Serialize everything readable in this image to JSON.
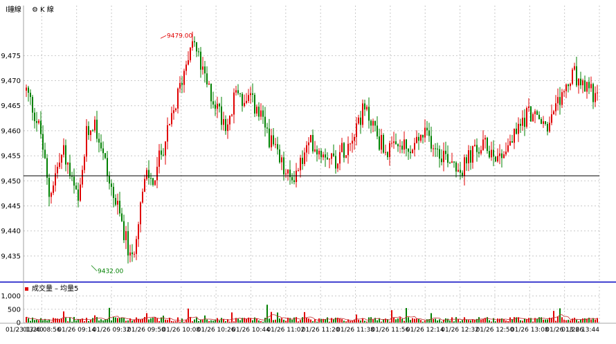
{
  "header": {
    "period_label": "l鐘線",
    "kline_label": "K 線",
    "kline_icon": "gear-icon"
  },
  "volume_panel": {
    "legend_volume": "成交量",
    "legend_separator": "–",
    "legend_ma": "均量5"
  },
  "colors": {
    "up": "#e00000",
    "down": "#008000",
    "reference_line": "#000000",
    "panel_divider": "#0000c0",
    "grid": "#c8c8c8"
  },
  "chart_data": {
    "type": "candlestick",
    "price_axis": {
      "ylim": [
        9430,
        9485
      ],
      "ticks": [
        "9,435",
        "9,440",
        "9,445",
        "9,450",
        "9,455",
        "9,460",
        "9,465",
        "9,470",
        "9,475"
      ]
    },
    "reference_level": 9451,
    "annotations": [
      {
        "label": "9479.00",
        "value": 9479,
        "kind": "high"
      },
      {
        "label": "9432.00",
        "value": 9432,
        "kind": "low"
      }
    ],
    "volume_axis": {
      "ylim": [
        0,
        1250
      ],
      "ticks": [
        "1,000",
        "500",
        "0"
      ]
    },
    "x_tick_labels": [
      "01/23 13:40",
      "01/26 08:56",
      "01/26 09:14",
      "01/26 09:32",
      "01/26 09:50",
      "01/26 10:08",
      "01/26 10:26",
      "01/26 10:44",
      "01/26 11:02",
      "01/26 11:20",
      "01/26 11:38",
      "01/26 11:56",
      "01/26 12:14",
      "01/26 12:32",
      "01/26 12:50",
      "01/26 13:08",
      "01/26 13:26",
      "01/26 13:44"
    ],
    "close_path": [
      9468,
      9464,
      9459,
      9447,
      9452,
      9456,
      9450,
      9445,
      9459,
      9462,
      9457,
      9450,
      9445,
      9440,
      9433,
      9444,
      9451,
      9450,
      9456,
      9460,
      9466,
      9472,
      9479,
      9474,
      9469,
      9466,
      9463,
      9461,
      9469,
      9465,
      9466,
      9463,
      9460,
      9456,
      9453,
      9450,
      9452,
      9455,
      9458,
      9456,
      9456,
      9454,
      9456,
      9458,
      9462,
      9464,
      9462,
      9458,
      9456,
      9456,
      9457,
      9455,
      9458,
      9459,
      9458,
      9456,
      9455,
      9454,
      9452,
      9455,
      9456,
      9457,
      9456,
      9455,
      9457,
      9459,
      9462,
      9464,
      9462,
      9461,
      9462,
      9466,
      9469,
      9471,
      9468,
      9469,
      9466
    ]
  }
}
